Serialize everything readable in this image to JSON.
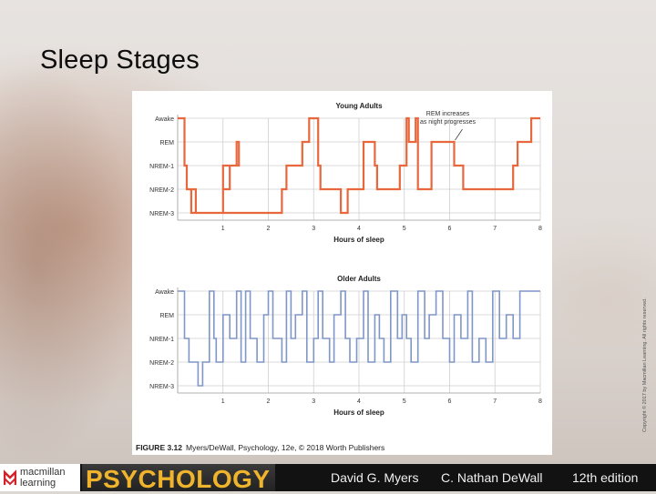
{
  "slide": {
    "title": "Sleep Stages"
  },
  "figure": {
    "caption_label": "FIGURE 3.12",
    "caption_text": "Myers/DeWall, Psychology, 12e, © 2018 Worth Publishers",
    "copyright": "Copyright © 2017 by Macmillan Learning. All rights reserved."
  },
  "footer": {
    "publisher_line1": "macmillan",
    "publisher_line2": "learning",
    "book_title": "PSYCHOLOGY",
    "author1": "David G. Myers",
    "author2": "C. Nathan DeWall",
    "edition": "12th edition"
  },
  "colors": {
    "young": "#e8673c",
    "older": "#7f96c8",
    "grid": "#cfcfcf"
  },
  "chart_data": [
    {
      "type": "line",
      "title": "Young Adults",
      "xlabel": "Hours of sleep",
      "ylabel": "",
      "x_ticks": [
        1,
        2,
        3,
        4,
        5,
        6,
        7,
        8
      ],
      "xlim": [
        0,
        8
      ],
      "y_categories": [
        "Awake",
        "REM",
        "NREM-1",
        "NREM-2",
        "NREM-3"
      ],
      "annotation": {
        "text": [
          "REM increases",
          "as night progresses"
        ],
        "x": 6,
        "y": "REM"
      },
      "series": [
        {
          "x": [
            0,
            0.15,
            0.2,
            0.3,
            0.4,
            0.3,
            0.5,
            1.0,
            1.15,
            1.3,
            1.35,
            1.0,
            2.3,
            2.4,
            2.5,
            2.6,
            2.75,
            2.8,
            2.9,
            3.1,
            3.15,
            3.5,
            3.6,
            3.7,
            3.75,
            4.1,
            4.25,
            4.35,
            4.4,
            4.7,
            4.9,
            5.05,
            5.1,
            5.25,
            5.3,
            5.6,
            5.85,
            6.1,
            6.3,
            6.5,
            6.6,
            6.7,
            6.8,
            7.0,
            7.4,
            7.5,
            7.8,
            8.0
          ],
          "y": [
            "Awake",
            "NREM-1",
            "NREM-2",
            "NREM-3",
            "NREM-2",
            "NREM-3",
            "NREM-3",
            "NREM-2",
            "NREM-1",
            "REM",
            "NREM-1",
            "NREM-3",
            "NREM-2",
            "NREM-1",
            "NREM-1",
            "NREM-1",
            "REM",
            "REM",
            "Awake",
            "NREM-1",
            "NREM-2",
            "NREM-2",
            "NREM-3",
            "NREM-3",
            "NREM-2",
            "REM",
            "REM",
            "NREM-1",
            "NREM-2",
            "NREM-2",
            "NREM-1",
            "Awake",
            "REM",
            "Awake",
            "NREM-2",
            "REM",
            "REM",
            "NREM-1",
            "NREM-2",
            "NREM-2",
            "NREM-2",
            "NREM-2",
            "NREM-2",
            "NREM-2",
            "NREM-1",
            "REM",
            "Awake",
            "Awake"
          ]
        }
      ]
    },
    {
      "type": "line",
      "title": "Older Adults",
      "xlabel": "Hours of sleep",
      "ylabel": "",
      "x_ticks": [
        1,
        2,
        3,
        4,
        5,
        6,
        7,
        8
      ],
      "xlim": [
        0,
        8
      ],
      "y_categories": [
        "Awake",
        "REM",
        "NREM-1",
        "NREM-2",
        "NREM-3"
      ],
      "series": [
        {
          "x": [
            0,
            0.15,
            0.25,
            0.45,
            0.55,
            0.7,
            0.8,
            0.85,
            1.0,
            1.15,
            1.3,
            1.4,
            1.5,
            1.6,
            1.75,
            1.9,
            2.0,
            2.1,
            2.3,
            2.4,
            2.5,
            2.6,
            2.75,
            2.85,
            3.0,
            3.1,
            3.2,
            3.35,
            3.45,
            3.6,
            3.7,
            3.8,
            3.95,
            4.1,
            4.2,
            4.35,
            4.45,
            4.55,
            4.7,
            4.85,
            4.95,
            5.05,
            5.15,
            5.3,
            5.45,
            5.55,
            5.7,
            5.85,
            6.0,
            6.1,
            6.25,
            6.4,
            6.5,
            6.65,
            6.8,
            6.95,
            7.1,
            7.25,
            7.4,
            7.55,
            7.65,
            7.8,
            8.0
          ],
          "y": [
            "Awake",
            "NREM-1",
            "NREM-2",
            "NREM-3",
            "NREM-2",
            "Awake",
            "NREM-1",
            "NREM-2",
            "REM",
            "NREM-1",
            "Awake",
            "NREM-2",
            "Awake",
            "NREM-1",
            "NREM-2",
            "REM",
            "Awake",
            "NREM-1",
            "NREM-2",
            "Awake",
            "NREM-1",
            "REM",
            "Awake",
            "NREM-2",
            "NREM-1",
            "Awake",
            "NREM-1",
            "NREM-2",
            "REM",
            "Awake",
            "NREM-1",
            "NREM-2",
            "NREM-1",
            "Awake",
            "NREM-2",
            "REM",
            "NREM-1",
            "NREM-2",
            "Awake",
            "NREM-1",
            "REM",
            "NREM-1",
            "NREM-2",
            "Awake",
            "NREM-1",
            "REM",
            "Awake",
            "NREM-1",
            "NREM-2",
            "REM",
            "NREM-1",
            "Awake",
            "NREM-2",
            "NREM-1",
            "NREM-2",
            "Awake",
            "NREM-1",
            "REM",
            "NREM-1",
            "Awake",
            "Awake",
            "Awake",
            "Awake"
          ]
        }
      ]
    }
  ]
}
